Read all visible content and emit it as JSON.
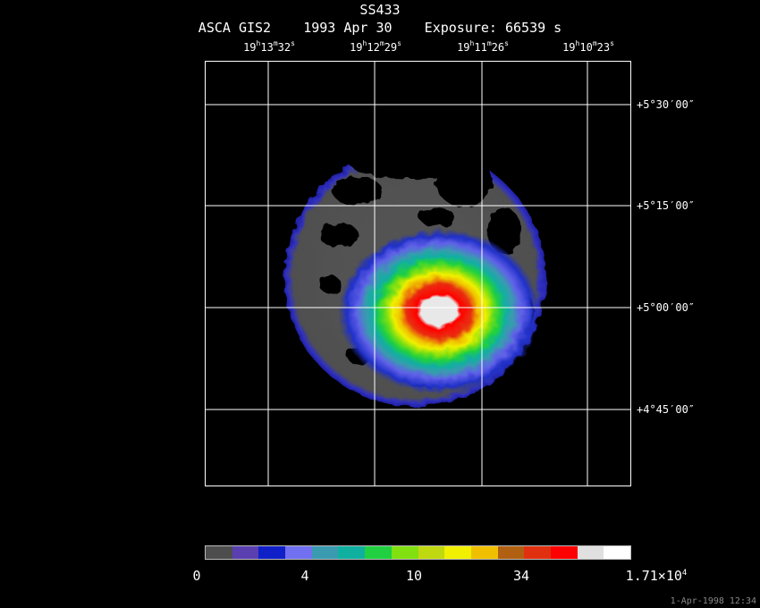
{
  "header": {
    "object": "SS433",
    "instrument": "ASCA GIS2",
    "date": "1993 Apr 30",
    "exposure": "Exposure: 66539 s"
  },
  "ra_labels": [
    {
      "h": "19",
      "m": "13",
      "s": "32"
    },
    {
      "h": "19",
      "m": "12",
      "s": "29"
    },
    {
      "h": "19",
      "m": "11",
      "s": "26"
    },
    {
      "h": "19",
      "m": "10",
      "s": "23"
    }
  ],
  "dec_labels": [
    "+5°30′00″",
    "+5°15′00″",
    "+5°00′00″",
    "+4°45′00″"
  ],
  "colorbar": {
    "colors": [
      "#4d4d4d",
      "#5a3fb0",
      "#1020c8",
      "#7070f0",
      "#3a9ab0",
      "#10b0a0",
      "#20d040",
      "#80e010",
      "#c0d810",
      "#f0f000",
      "#f0c000",
      "#b06010",
      "#e03010",
      "#ff0000",
      "#e0e0e0",
      "#ffffff"
    ],
    "labels": [
      "0",
      "4",
      "10",
      "34"
    ],
    "max_label": {
      "mantissa": "1.71×10",
      "exponent": "4"
    }
  },
  "timestamp": "1-Apr-1998 12:34"
}
